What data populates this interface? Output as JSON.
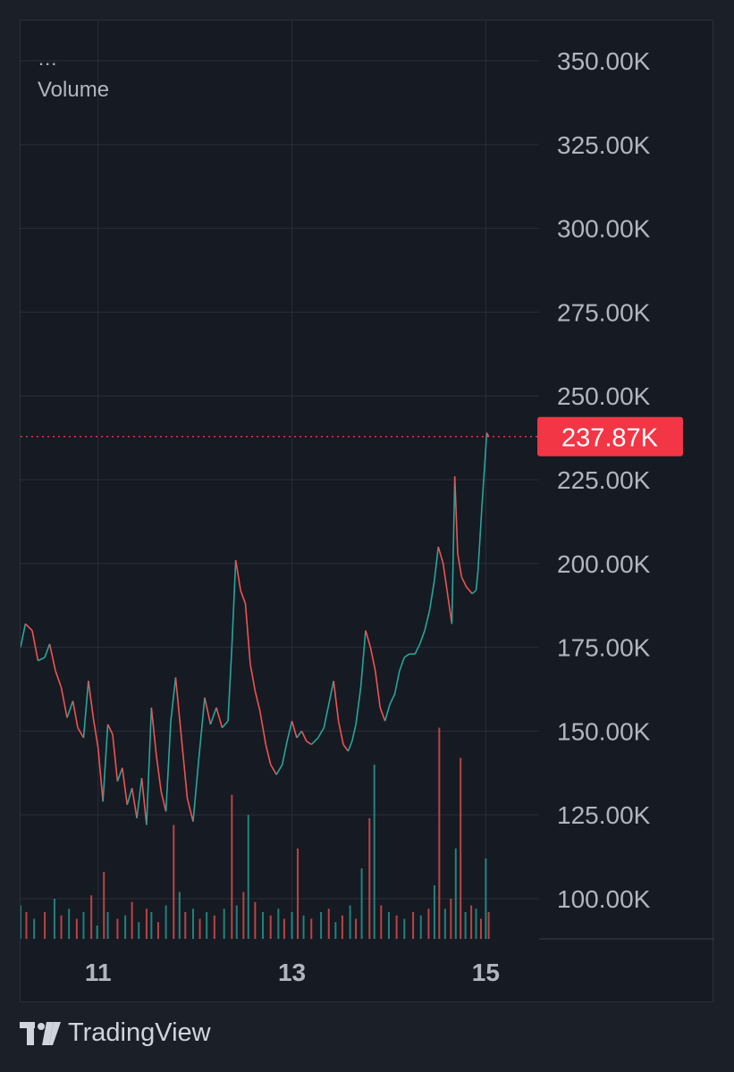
{
  "legend": {
    "dots": "...",
    "title": "Volume"
  },
  "brand": {
    "name": "TradingView"
  },
  "colors": {
    "background": "#161a23",
    "grid": "#2a2e39",
    "axis_text": "#b2b5be",
    "up": "#26a69a",
    "down": "#ef5350",
    "price_line": "#f23645",
    "price_label_bg": "#f23645"
  },
  "chart_data": {
    "type": "line",
    "title": "Volume",
    "ylim": [
      88000,
      362000
    ],
    "y_ticks": [
      "350.00K",
      "325.00K",
      "300.00K",
      "275.00K",
      "250.00K",
      "225.00K",
      "200.00K",
      "175.00K",
      "150.00K",
      "125.00K",
      "100.00K"
    ],
    "y_tick_values": [
      350000,
      325000,
      300000,
      275000,
      250000,
      225000,
      200000,
      175000,
      150000,
      125000,
      100000
    ],
    "x_ticks": [
      "11",
      "13",
      "15"
    ],
    "x_tick_values": [
      11,
      13,
      15
    ],
    "xlim": [
      10.2,
      15.55
    ],
    "current_value": 237870,
    "current_label": "237.87K",
    "series": [
      {
        "values": [
          [
            10.2,
            175000
          ],
          [
            10.25,
            182000
          ],
          [
            10.32,
            180000
          ],
          [
            10.38,
            171000
          ],
          [
            10.45,
            172000
          ],
          [
            10.5,
            176000
          ],
          [
            10.56,
            168000
          ],
          [
            10.62,
            163000
          ],
          [
            10.68,
            154000
          ],
          [
            10.74,
            159000
          ],
          [
            10.79,
            151000
          ],
          [
            10.85,
            148000
          ],
          [
            10.9,
            165000
          ],
          [
            10.95,
            154000
          ],
          [
            11.0,
            145000
          ],
          [
            11.05,
            129000
          ],
          [
            11.1,
            152000
          ],
          [
            11.15,
            149000
          ],
          [
            11.2,
            135000
          ],
          [
            11.25,
            139000
          ],
          [
            11.3,
            128000
          ],
          [
            11.35,
            133000
          ],
          [
            11.4,
            124000
          ],
          [
            11.45,
            136000
          ],
          [
            11.5,
            122000
          ],
          [
            11.55,
            157000
          ],
          [
            11.6,
            143000
          ],
          [
            11.65,
            132000
          ],
          [
            11.7,
            126000
          ],
          [
            11.75,
            153000
          ],
          [
            11.8,
            166000
          ],
          [
            11.86,
            148000
          ],
          [
            11.92,
            130000
          ],
          [
            11.98,
            123000
          ],
          [
            12.04,
            142000
          ],
          [
            12.1,
            160000
          ],
          [
            12.16,
            152000
          ],
          [
            12.22,
            157000
          ],
          [
            12.28,
            151000
          ],
          [
            12.34,
            153000
          ],
          [
            12.38,
            175000
          ],
          [
            12.42,
            201000
          ],
          [
            12.47,
            192000
          ],
          [
            12.52,
            188000
          ],
          [
            12.57,
            170000
          ],
          [
            12.62,
            162000
          ],
          [
            12.67,
            156000
          ],
          [
            12.73,
            146000
          ],
          [
            12.78,
            140000
          ],
          [
            12.84,
            137000
          ],
          [
            12.9,
            140000
          ],
          [
            12.95,
            147000
          ],
          [
            13.0,
            153000
          ],
          [
            13.05,
            148000
          ],
          [
            13.1,
            150000
          ],
          [
            13.15,
            147000
          ],
          [
            13.2,
            146000
          ],
          [
            13.27,
            148000
          ],
          [
            13.33,
            151000
          ],
          [
            13.38,
            158000
          ],
          [
            13.43,
            165000
          ],
          [
            13.48,
            153000
          ],
          [
            13.53,
            146000
          ],
          [
            13.58,
            144000
          ],
          [
            13.62,
            147000
          ],
          [
            13.66,
            152000
          ],
          [
            13.71,
            163000
          ],
          [
            13.76,
            180000
          ],
          [
            13.81,
            175000
          ],
          [
            13.86,
            168000
          ],
          [
            13.91,
            157000
          ],
          [
            13.96,
            153000
          ],
          [
            14.01,
            158000
          ],
          [
            14.06,
            161000
          ],
          [
            14.11,
            168000
          ],
          [
            14.16,
            172000
          ],
          [
            14.21,
            173000
          ],
          [
            14.27,
            173000
          ],
          [
            14.32,
            176000
          ],
          [
            14.37,
            180000
          ],
          [
            14.42,
            186000
          ],
          [
            14.47,
            195000
          ],
          [
            14.51,
            205000
          ],
          [
            14.56,
            200000
          ],
          [
            14.6,
            192000
          ],
          [
            14.65,
            182000
          ],
          [
            14.68,
            226000
          ],
          [
            14.71,
            203000
          ],
          [
            14.75,
            196000
          ],
          [
            14.8,
            193000
          ],
          [
            14.86,
            191000
          ],
          [
            14.9,
            192000
          ],
          [
            14.92,
            198000
          ],
          [
            14.96,
            217000
          ],
          [
            14.99,
            230000
          ],
          [
            15.01,
            239000
          ],
          [
            15.03,
            237870
          ]
        ]
      }
    ],
    "volume_bars": [
      [
        10.2,
        98000
      ],
      [
        10.26,
        96000
      ],
      [
        10.34,
        94000
      ],
      [
        10.45,
        96000
      ],
      [
        10.55,
        100000
      ],
      [
        10.62,
        95000
      ],
      [
        10.7,
        97000
      ],
      [
        10.78,
        94000
      ],
      [
        10.85,
        96000
      ],
      [
        10.93,
        101000
      ],
      [
        10.99,
        92000
      ],
      [
        11.06,
        108000
      ],
      [
        11.1,
        96000
      ],
      [
        11.2,
        94000
      ],
      [
        11.28,
        95000
      ],
      [
        11.35,
        99000
      ],
      [
        11.42,
        93000
      ],
      [
        11.5,
        97000
      ],
      [
        11.55,
        96000
      ],
      [
        11.62,
        93000
      ],
      [
        11.7,
        98000
      ],
      [
        11.78,
        122000
      ],
      [
        11.84,
        102000
      ],
      [
        11.9,
        96000
      ],
      [
        11.98,
        97000
      ],
      [
        12.05,
        94000
      ],
      [
        12.12,
        96000
      ],
      [
        12.2,
        95000
      ],
      [
        12.3,
        97000
      ],
      [
        12.38,
        131000
      ],
      [
        12.43,
        98000
      ],
      [
        12.5,
        102000
      ],
      [
        12.55,
        125000
      ],
      [
        12.62,
        99000
      ],
      [
        12.7,
        96000
      ],
      [
        12.78,
        95000
      ],
      [
        12.86,
        97000
      ],
      [
        12.92,
        94000
      ],
      [
        13.0,
        96000
      ],
      [
        13.06,
        115000
      ],
      [
        13.12,
        95000
      ],
      [
        13.2,
        94000
      ],
      [
        13.3,
        96000
      ],
      [
        13.38,
        97000
      ],
      [
        13.45,
        93000
      ],
      [
        13.52,
        95000
      ],
      [
        13.6,
        98000
      ],
      [
        13.66,
        94000
      ],
      [
        13.72,
        109000
      ],
      [
        13.8,
        124000
      ],
      [
        13.85,
        140000
      ],
      [
        13.92,
        98000
      ],
      [
        14.0,
        96000
      ],
      [
        14.08,
        95000
      ],
      [
        14.16,
        94000
      ],
      [
        14.25,
        96000
      ],
      [
        14.33,
        95000
      ],
      [
        14.41,
        97000
      ],
      [
        14.47,
        104000
      ],
      [
        14.52,
        151000
      ],
      [
        14.58,
        97000
      ],
      [
        14.64,
        100000
      ],
      [
        14.69,
        115000
      ],
      [
        14.74,
        142000
      ],
      [
        14.79,
        96000
      ],
      [
        14.85,
        98000
      ],
      [
        14.9,
        97000
      ],
      [
        14.95,
        94000
      ],
      [
        15.0,
        112000
      ],
      [
        15.03,
        96000
      ]
    ]
  }
}
